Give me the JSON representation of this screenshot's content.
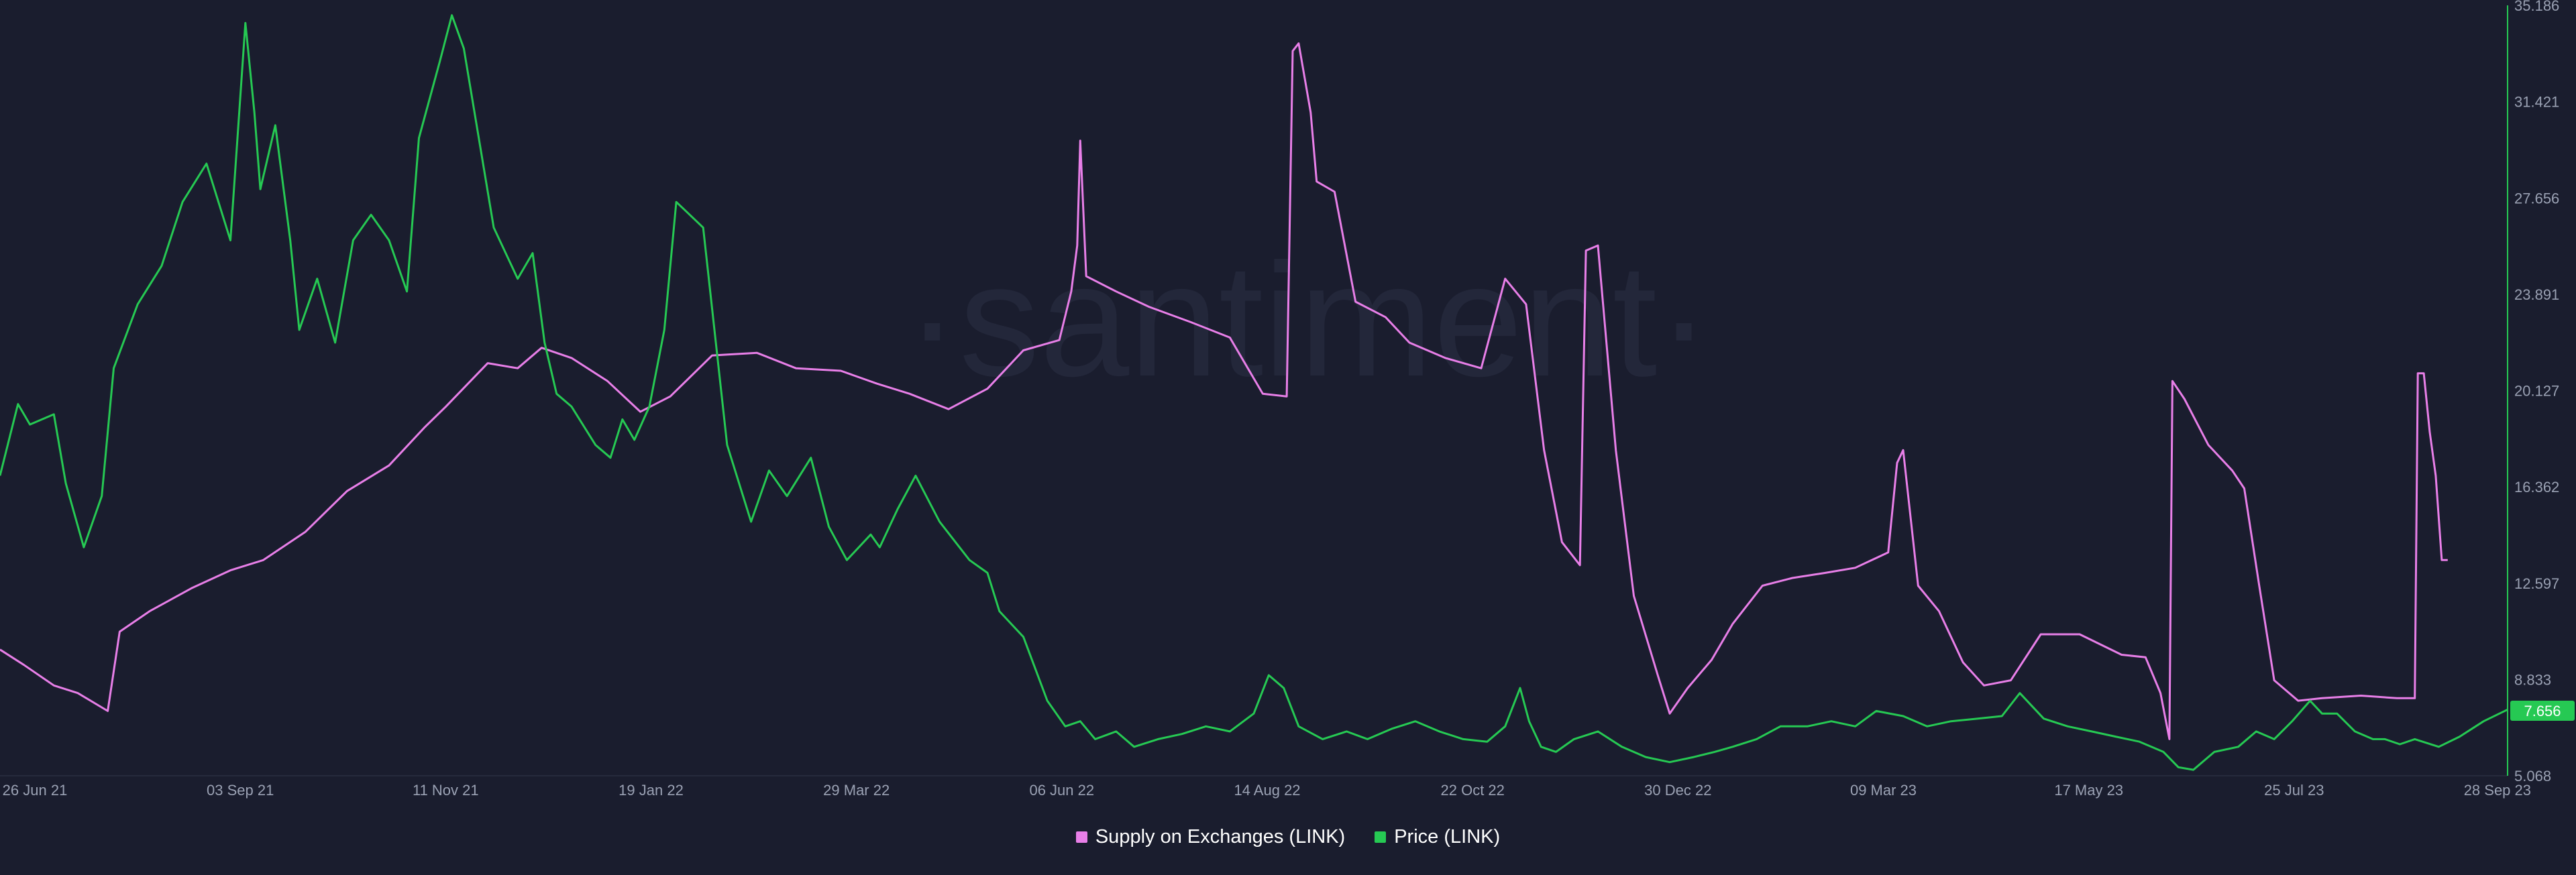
{
  "watermark": "·santiment·",
  "chart_data": {
    "type": "line",
    "x_ticks": [
      "26 Jun 21",
      "03 Sep 21",
      "11 Nov 21",
      "19 Jan 22",
      "29 Mar 22",
      "06 Jun 22",
      "14 Aug 22",
      "22 Oct 22",
      "30 Dec 22",
      "09 Mar 23",
      "17 May 23",
      "25 Jul 23",
      "28 Sep 23"
    ],
    "xlim": [
      "2021-06-12",
      "2023-09-28"
    ],
    "y_ticks": [
      "35.186",
      "31.421",
      "27.656",
      "23.891",
      "20.127",
      "16.362",
      "12.597",
      "8.833",
      "5.068"
    ],
    "ylim": [
      5.068,
      35.186
    ],
    "y_axis_position": "right",
    "grid": false,
    "legend_position": "bottom-center",
    "current_value_label": "7.656",
    "current_value_color": "#26c953",
    "series": [
      {
        "name": "Supply on Exchanges (LINK)",
        "color": "#e87fe8",
        "axis": "hidden",
        "x": [
          "2021-06-12",
          "2021-06-20",
          "2021-06-30",
          "2021-07-08",
          "2021-07-18",
          "2021-07-22",
          "2021-08-01",
          "2021-08-15",
          "2021-08-28",
          "2021-09-08",
          "2021-09-22",
          "2021-10-06",
          "2021-10-20",
          "2021-11-01",
          "2021-11-08",
          "2021-11-22",
          "2021-12-02",
          "2021-12-10",
          "2021-12-20",
          "2022-01-01",
          "2022-01-12",
          "2022-01-22",
          "2022-02-05",
          "2022-02-20",
          "2022-03-05",
          "2022-03-20",
          "2022-04-01",
          "2022-04-12",
          "2022-04-25",
          "2022-05-08",
          "2022-05-20",
          "2022-06-01",
          "2022-06-05",
          "2022-06-07",
          "2022-06-08",
          "2022-06-10",
          "2022-06-20",
          "2022-07-01",
          "2022-07-15",
          "2022-07-28",
          "2022-08-08",
          "2022-08-16",
          "2022-08-18",
          "2022-08-20",
          "2022-08-24",
          "2022-08-26",
          "2022-09-01",
          "2022-09-08",
          "2022-09-18",
          "2022-09-26",
          "2022-10-08",
          "2022-10-20",
          "2022-10-28",
          "2022-11-04",
          "2022-11-10",
          "2022-11-16",
          "2022-11-22",
          "2022-11-24",
          "2022-11-28",
          "2022-12-04",
          "2022-12-10",
          "2022-12-18",
          "2022-12-22",
          "2022-12-28",
          "2023-01-05",
          "2023-01-12",
          "2023-01-22",
          "2023-02-01",
          "2023-02-12",
          "2023-02-22",
          "2023-03-05",
          "2023-03-08",
          "2023-03-10",
          "2023-03-15",
          "2023-03-22",
          "2023-03-30",
          "2023-04-06",
          "2023-04-15",
          "2023-04-25",
          "2023-05-08",
          "2023-05-22",
          "2023-05-30",
          "2023-06-04",
          "2023-06-07",
          "2023-06-08",
          "2023-06-12",
          "2023-06-20",
          "2023-06-28",
          "2023-07-02",
          "2023-07-07",
          "2023-07-12",
          "2023-07-20",
          "2023-07-28",
          "2023-08-10",
          "2023-08-22",
          "2023-08-28",
          "2023-08-29",
          "2023-08-31",
          "2023-09-02",
          "2023-09-04",
          "2023-09-06",
          "2023-09-08"
        ],
        "y": [
          10.0,
          9.4,
          8.6,
          8.3,
          7.6,
          10.7,
          11.5,
          12.4,
          13.1,
          13.5,
          14.6,
          16.2,
          17.2,
          18.7,
          19.5,
          21.2,
          21.0,
          21.8,
          21.4,
          20.5,
          19.3,
          19.9,
          21.5,
          21.6,
          21.0,
          20.9,
          20.4,
          20.0,
          19.4,
          20.2,
          21.7,
          22.1,
          24.0,
          25.8,
          29.9,
          24.6,
          24.0,
          23.4,
          22.8,
          22.2,
          20.0,
          19.9,
          33.4,
          33.7,
          31.0,
          28.3,
          27.9,
          23.6,
          23.0,
          22.0,
          21.4,
          21.0,
          24.5,
          23.5,
          17.8,
          14.2,
          13.3,
          25.6,
          25.8,
          17.8,
          12.1,
          9.0,
          7.5,
          8.5,
          9.6,
          11.0,
          12.5,
          12.8,
          13.0,
          13.2,
          13.8,
          17.3,
          17.8,
          12.5,
          11.5,
          9.5,
          8.6,
          8.8,
          10.6,
          10.6,
          9.8,
          9.7,
          8.3,
          6.5,
          20.5,
          19.8,
          18.0,
          17.0,
          16.3,
          12.5,
          8.8,
          8.0,
          8.1,
          8.2,
          8.1,
          8.1,
          20.8,
          20.8,
          18.5,
          16.8,
          13.5,
          13.5
        ]
      },
      {
        "name": "Price (LINK)",
        "color": "#26c953",
        "axis": "right",
        "x": [
          "2021-06-12",
          "2021-06-18",
          "2021-06-22",
          "2021-06-30",
          "2021-07-04",
          "2021-07-10",
          "2021-07-16",
          "2021-07-20",
          "2021-07-28",
          "2021-08-05",
          "2021-08-12",
          "2021-08-20",
          "2021-08-28",
          "2021-09-02",
          "2021-09-05",
          "2021-09-07",
          "2021-09-12",
          "2021-09-17",
          "2021-09-20",
          "2021-09-26",
          "2021-10-02",
          "2021-10-08",
          "2021-10-14",
          "2021-10-20",
          "2021-10-26",
          "2021-10-30",
          "2021-11-06",
          "2021-11-10",
          "2021-11-14",
          "2021-11-19",
          "2021-11-24",
          "2021-12-02",
          "2021-12-07",
          "2021-12-11",
          "2021-12-15",
          "2021-12-20",
          "2021-12-28",
          "2022-01-02",
          "2022-01-06",
          "2022-01-10",
          "2022-01-15",
          "2022-01-20",
          "2022-01-24",
          "2022-02-02",
          "2022-02-10",
          "2022-02-18",
          "2022-02-24",
          "2022-03-02",
          "2022-03-10",
          "2022-03-16",
          "2022-03-22",
          "2022-03-30",
          "2022-04-02",
          "2022-04-08",
          "2022-04-14",
          "2022-04-22",
          "2022-05-02",
          "2022-05-08",
          "2022-05-12",
          "2022-05-20",
          "2022-05-28",
          "2022-06-03",
          "2022-06-08",
          "2022-06-13",
          "2022-06-20",
          "2022-06-26",
          "2022-07-04",
          "2022-07-12",
          "2022-07-20",
          "2022-07-28",
          "2022-08-05",
          "2022-08-10",
          "2022-08-15",
          "2022-08-20",
          "2022-08-28",
          "2022-09-05",
          "2022-09-12",
          "2022-09-20",
          "2022-09-28",
          "2022-10-06",
          "2022-10-14",
          "2022-10-22",
          "2022-10-28",
          "2022-11-02",
          "2022-11-05",
          "2022-11-09",
          "2022-11-14",
          "2022-11-20",
          "2022-11-28",
          "2022-12-06",
          "2022-12-14",
          "2022-12-22",
          "2022-12-30",
          "2023-01-06",
          "2023-01-12",
          "2023-01-20",
          "2023-01-28",
          "2023-02-06",
          "2023-02-14",
          "2023-02-22",
          "2023-03-01",
          "2023-03-10",
          "2023-03-18",
          "2023-03-26",
          "2023-04-04",
          "2023-04-12",
          "2023-04-18",
          "2023-04-26",
          "2023-05-04",
          "2023-05-12",
          "2023-05-20",
          "2023-05-28",
          "2023-06-05",
          "2023-06-10",
          "2023-06-15",
          "2023-06-22",
          "2023-06-30",
          "2023-07-06",
          "2023-07-12",
          "2023-07-18",
          "2023-07-24",
          "2023-07-28",
          "2023-08-02",
          "2023-08-08",
          "2023-08-14",
          "2023-08-18",
          "2023-08-23",
          "2023-08-28",
          "2023-09-05",
          "2023-09-12",
          "2023-09-20",
          "2023-09-28"
        ],
        "y": [
          16.8,
          19.6,
          18.8,
          19.2,
          16.5,
          14.0,
          16.0,
          21.0,
          23.5,
          25.0,
          27.5,
          29.0,
          26.0,
          34.5,
          31.0,
          28.0,
          30.5,
          26.0,
          22.5,
          24.5,
          22.0,
          26.0,
          27.0,
          26.0,
          24.0,
          30.0,
          33.0,
          34.8,
          33.5,
          30.0,
          26.5,
          24.5,
          25.5,
          22.0,
          20.0,
          19.5,
          18.0,
          17.5,
          19.0,
          18.2,
          19.5,
          22.5,
          27.5,
          26.5,
          18.0,
          15.0,
          17.0,
          16.0,
          17.5,
          14.8,
          13.5,
          14.5,
          14.0,
          15.5,
          16.8,
          15.0,
          13.5,
          13.0,
          11.5,
          10.5,
          8.0,
          7.0,
          7.2,
          6.5,
          6.8,
          6.2,
          6.5,
          6.7,
          7.0,
          6.8,
          7.5,
          9.0,
          8.5,
          7.0,
          6.5,
          6.8,
          6.5,
          6.9,
          7.2,
          6.8,
          6.5,
          6.4,
          7.0,
          8.5,
          7.2,
          6.2,
          6.0,
          6.5,
          6.8,
          6.2,
          5.8,
          5.6,
          5.8,
          6.0,
          6.2,
          6.5,
          7.0,
          7.0,
          7.2,
          7.0,
          7.6,
          7.4,
          7.0,
          7.2,
          7.3,
          7.4,
          8.3,
          7.3,
          7.0,
          6.8,
          6.6,
          6.4,
          6.0,
          5.4,
          5.3,
          6.0,
          6.2,
          6.8,
          6.5,
          7.2,
          8.0,
          7.5,
          7.5,
          6.8,
          6.5,
          6.5,
          6.3,
          6.5,
          6.2,
          6.6,
          7.2,
          7.656
        ]
      }
    ]
  }
}
